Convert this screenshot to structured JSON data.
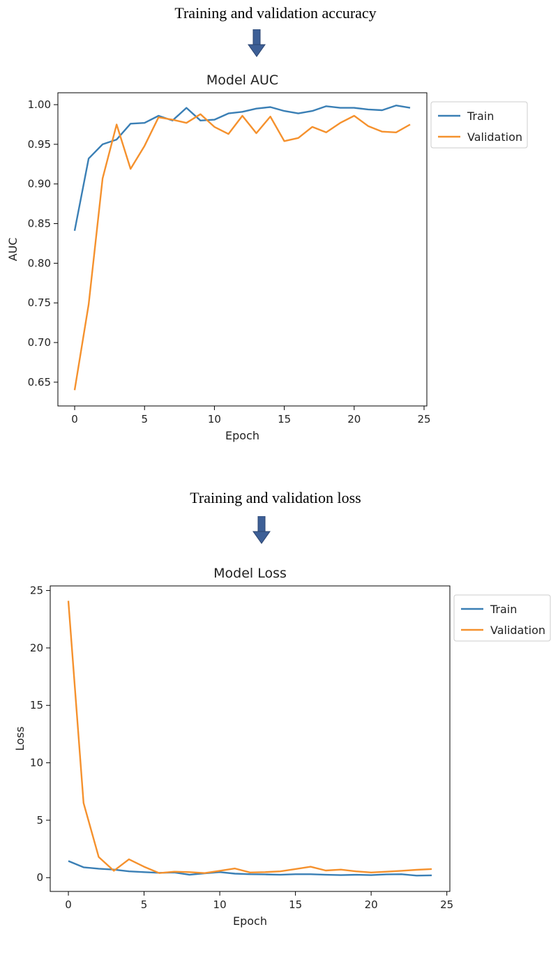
{
  "captions": {
    "accuracy": "Training and validation accuracy",
    "loss": "Training and validation loss"
  },
  "colors": {
    "train": "#3a7fb5",
    "validation": "#f5912d",
    "arrow": "#3d5f96"
  },
  "icons": {
    "down_arrow": "down-arrow-icon"
  },
  "chart_data": [
    {
      "type": "line",
      "title": "Model AUC",
      "xlabel": "Epoch",
      "ylabel": "AUC",
      "xlim": [
        -1.2,
        25.2
      ],
      "ylim": [
        0.62,
        1.015
      ],
      "xticks": [
        "0",
        "5",
        "10",
        "15",
        "20",
        "25"
      ],
      "yticks": [
        "0.65",
        "0.70",
        "0.75",
        "0.80",
        "0.85",
        "0.90",
        "0.95",
        "1.00"
      ],
      "legend_position": "outside-top-right",
      "grid": false,
      "x": [
        0,
        1,
        2,
        3,
        4,
        5,
        6,
        7,
        8,
        9,
        10,
        11,
        12,
        13,
        14,
        15,
        16,
        17,
        18,
        19,
        20,
        21,
        22,
        23,
        24
      ],
      "series": [
        {
          "name": "Train",
          "values": [
            0.841,
            0.932,
            0.95,
            0.956,
            0.976,
            0.977,
            0.986,
            0.98,
            0.996,
            0.98,
            0.981,
            0.989,
            0.991,
            0.995,
            0.997,
            0.992,
            0.989,
            0.992,
            0.998,
            0.996,
            0.996,
            0.994,
            0.993,
            0.999,
            0.996
          ]
        },
        {
          "name": "Validation",
          "values": [
            0.64,
            0.748,
            0.907,
            0.975,
            0.919,
            0.948,
            0.984,
            0.981,
            0.977,
            0.988,
            0.972,
            0.963,
            0.986,
            0.964,
            0.985,
            0.954,
            0.958,
            0.972,
            0.965,
            0.977,
            0.986,
            0.973,
            0.966,
            0.965,
            0.975
          ]
        }
      ]
    },
    {
      "type": "line",
      "title": "Model Loss",
      "xlabel": "Epoch",
      "ylabel": "Loss",
      "xlim": [
        -1.2,
        25.2
      ],
      "ylim": [
        -1.2,
        25.4
      ],
      "xticks": [
        "0",
        "5",
        "10",
        "15",
        "20",
        "25"
      ],
      "yticks": [
        "0",
        "5",
        "10",
        "15",
        "20",
        "25"
      ],
      "legend_position": "outside-top-right",
      "grid": false,
      "x": [
        0,
        1,
        2,
        3,
        4,
        5,
        6,
        7,
        8,
        9,
        10,
        11,
        12,
        13,
        14,
        15,
        16,
        17,
        18,
        19,
        20,
        21,
        22,
        23,
        24
      ],
      "series": [
        {
          "name": "Train",
          "values": [
            1.45,
            0.9,
            0.78,
            0.7,
            0.55,
            0.48,
            0.42,
            0.45,
            0.25,
            0.38,
            0.48,
            0.35,
            0.3,
            0.28,
            0.25,
            0.3,
            0.3,
            0.25,
            0.22,
            0.25,
            0.22,
            0.28,
            0.3,
            0.18,
            0.2
          ]
        },
        {
          "name": "Validation",
          "values": [
            24.1,
            6.5,
            1.8,
            0.6,
            1.6,
            0.95,
            0.4,
            0.52,
            0.48,
            0.4,
            0.6,
            0.8,
            0.45,
            0.48,
            0.55,
            0.75,
            0.95,
            0.62,
            0.7,
            0.55,
            0.45,
            0.52,
            0.6,
            0.68,
            0.75
          ]
        }
      ]
    }
  ]
}
